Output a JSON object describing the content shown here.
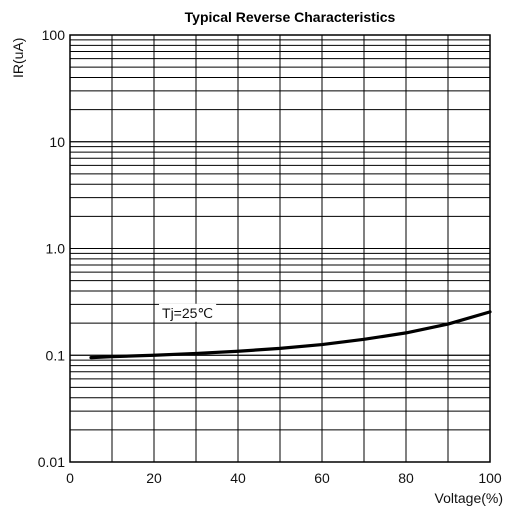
{
  "chart_data": {
    "type": "line",
    "title": "Typical Reverse Characteristics",
    "xlabel": "Voltage(%)",
    "ylabel": "IR(uA)",
    "xlim": [
      0,
      100
    ],
    "ylim": [
      0.01,
      100
    ],
    "yscale": "log",
    "grid": true,
    "x_ticks": [
      0,
      20,
      40,
      60,
      80,
      100
    ],
    "x_tick_labels": [
      "0",
      "20",
      "40",
      "60",
      "80",
      "100"
    ],
    "y_ticks": [
      0.01,
      0.1,
      1,
      10,
      100
    ],
    "y_tick_labels": [
      "0.01",
      "0.1",
      "1.0",
      "10",
      "100"
    ],
    "series": [
      {
        "x": [
          5,
          10,
          20,
          30,
          40,
          50,
          60,
          70,
          80,
          90,
          100
        ],
        "y": [
          0.095,
          0.097,
          0.1,
          0.104,
          0.109,
          0.116,
          0.126,
          0.141,
          0.162,
          0.196,
          0.255
        ],
        "color": "#000000"
      }
    ],
    "annotation": {
      "text": "Tj=25℃",
      "x": 28,
      "y": 0.25
    }
  }
}
